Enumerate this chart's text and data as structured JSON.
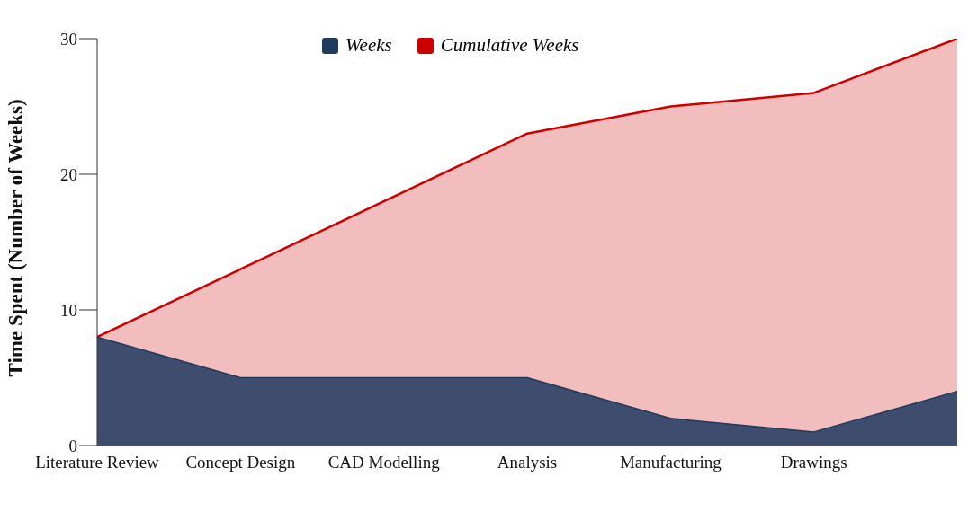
{
  "chart_data": {
    "type": "area",
    "ylabel": "Time Spent (Number of Weeks)",
    "categories": [
      "Literature Review",
      "Concept Design",
      "CAD Modelling",
      "Analysis",
      "Manufacturing",
      "Drawings",
      null
    ],
    "series": [
      {
        "name": "Weeks",
        "color": "#1f3a5f",
        "values": [
          8,
          5,
          5,
          5,
          2,
          1,
          4
        ]
      },
      {
        "name": "Cumulative Weeks",
        "color": "#cc0000",
        "values": [
          8,
          13,
          18,
          23,
          25,
          26,
          30
        ]
      }
    ],
    "ylim": [
      0,
      30
    ],
    "yticks": [
      0,
      10,
      20,
      30
    ],
    "grid": false,
    "legend": "top"
  }
}
